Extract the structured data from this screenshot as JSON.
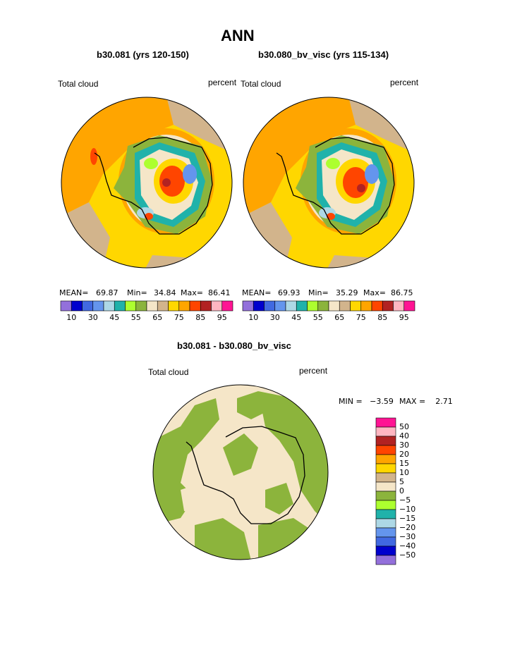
{
  "page_title": "ANN",
  "panels": [
    {
      "subtitle": "b30.081 (yrs 120-150)",
      "left_label": "Total cloud",
      "right_label": "percent",
      "mean_label": "MEAN=",
      "mean_value": "69.87",
      "min_label": "Min=",
      "min_value": "34.84",
      "max_label": "Max=",
      "max_value": "86.41"
    },
    {
      "subtitle": "b30.080_bv_visc (yrs 115-134)",
      "left_label": "Total cloud",
      "right_label": "percent",
      "mean_label": "MEAN=",
      "mean_value": "69.93",
      "min_label": "Min=",
      "min_value": "35.29",
      "max_label": "Max=",
      "max_value": "86.75"
    }
  ],
  "diff_panel": {
    "subtitle": "b30.081 - b30.080_bv_visc",
    "left_label": "Total cloud",
    "right_label": "percent",
    "min_text": "MIN =   −3.59",
    "max_text": "MAX =    2.71"
  },
  "colorbar_top": {
    "colors": [
      "#9370db",
      "#0000cd",
      "#4169e1",
      "#6495ed",
      "#add8e6",
      "#20b2aa",
      "#adff2f",
      "#8cb43c",
      "#f5e6c8",
      "#d2b48c",
      "#ffd700",
      "#ffa500",
      "#ff4500",
      "#b22222",
      "#ffb6c1",
      "#ff1493"
    ],
    "tick_labels": [
      "10",
      "30",
      "45",
      "55",
      "65",
      "75",
      "85",
      "95"
    ]
  },
  "colorbar_diff": {
    "colors": [
      "#ff1493",
      "#ffb6c1",
      "#b22222",
      "#ff4500",
      "#ffa500",
      "#ffd700",
      "#d2b48c",
      "#f5e6c8",
      "#8cb43c",
      "#adff2f",
      "#20b2aa",
      "#add8e6",
      "#6495ed",
      "#4169e1",
      "#0000cd",
      "#9370db"
    ],
    "tick_labels": [
      "50",
      "40",
      "30",
      "20",
      "15",
      "10",
      "5",
      "0",
      "−5",
      "−10",
      "−15",
      "−20",
      "−30",
      "−40",
      "−50"
    ]
  }
}
